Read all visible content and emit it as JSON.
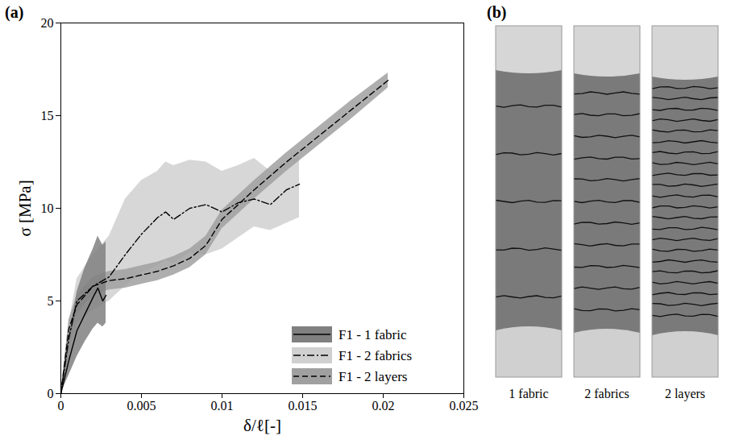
{
  "chart_data": {
    "type": "line",
    "panel_label": "(a)",
    "xlabel": "δ/ℓ[-]",
    "ylabel": "σ [MPa]",
    "xlim": [
      0,
      0.025
    ],
    "xticks": [
      0,
      0.005,
      0.01,
      0.015,
      0.02,
      0.025
    ],
    "ylim": [
      0,
      20
    ],
    "yticks": [
      0,
      5,
      10,
      15,
      20
    ],
    "grid": false,
    "legend": "lower right",
    "series": [
      {
        "name": "F1 - 1 fabric",
        "color": "#808080",
        "line_style": "solid",
        "x": [
          0,
          0.0005,
          0.001,
          0.0015,
          0.002,
          0.0023,
          0.0026,
          0.0028
        ],
        "values": [
          0,
          1.8,
          3.4,
          4.3,
          5.2,
          5.7,
          5.0,
          5.3
        ],
        "lower": [
          0,
          1.0,
          2.0,
          2.8,
          3.5,
          3.8,
          3.6,
          3.8
        ],
        "upper": [
          0,
          3.0,
          5.5,
          6.8,
          7.8,
          8.5,
          8.0,
          8.2
        ]
      },
      {
        "name": "F1 - 2 fabrics",
        "color": "#d0d0d0",
        "line_style": "dashdot",
        "x": [
          0,
          0.0005,
          0.001,
          0.002,
          0.003,
          0.004,
          0.005,
          0.006,
          0.0065,
          0.007,
          0.008,
          0.009,
          0.01,
          0.011,
          0.012,
          0.013,
          0.014,
          0.0148
        ],
        "values": [
          0,
          3,
          5,
          5.8,
          6.3,
          7.5,
          8.6,
          9.5,
          9.8,
          9.4,
          10,
          10.2,
          9.8,
          10.3,
          10.5,
          10.2,
          11,
          11.3
        ],
        "lower": [
          0,
          2.2,
          3.8,
          4.5,
          5.0,
          5.8,
          6.5,
          6.9,
          7.2,
          7.0,
          7.6,
          7.5,
          7.8,
          8.4,
          9.0,
          8.8,
          9.2,
          9.5
        ],
        "upper": [
          0,
          3.8,
          6.2,
          7.5,
          8.5,
          10.5,
          11.5,
          12.0,
          12.5,
          12.3,
          12.6,
          12.5,
          12.0,
          12.3,
          12.7,
          12.0,
          12.5,
          12.8
        ]
      },
      {
        "name": "F1 - 2 layers",
        "color": "#a0a0a0",
        "line_style": "dashed",
        "x": [
          0,
          0.0005,
          0.001,
          0.002,
          0.003,
          0.004,
          0.005,
          0.006,
          0.007,
          0.008,
          0.009,
          0.01,
          0.011,
          0.012,
          0.014,
          0.016,
          0.018,
          0.0203
        ],
        "values": [
          0,
          3.5,
          4.8,
          5.8,
          6.1,
          6.2,
          6.4,
          6.6,
          6.9,
          7.3,
          8.0,
          9.4,
          10.2,
          11.0,
          12.5,
          13.9,
          15.3,
          16.9
        ],
        "lower": [
          0,
          3.0,
          4.3,
          5.3,
          5.6,
          5.7,
          5.9,
          6.1,
          6.4,
          6.8,
          7.5,
          8.9,
          9.7,
          10.5,
          12.0,
          13.4,
          14.8,
          16.5
        ],
        "upper": [
          0,
          4.0,
          5.3,
          6.3,
          6.6,
          6.7,
          6.9,
          7.1,
          7.4,
          7.8,
          8.5,
          9.9,
          10.7,
          11.5,
          13.0,
          14.4,
          15.8,
          17.3
        ]
      }
    ]
  },
  "panel_b": {
    "panel_label": "(b)",
    "specimens": [
      "1 fabric",
      "2 fabrics",
      "2 layers"
    ]
  }
}
